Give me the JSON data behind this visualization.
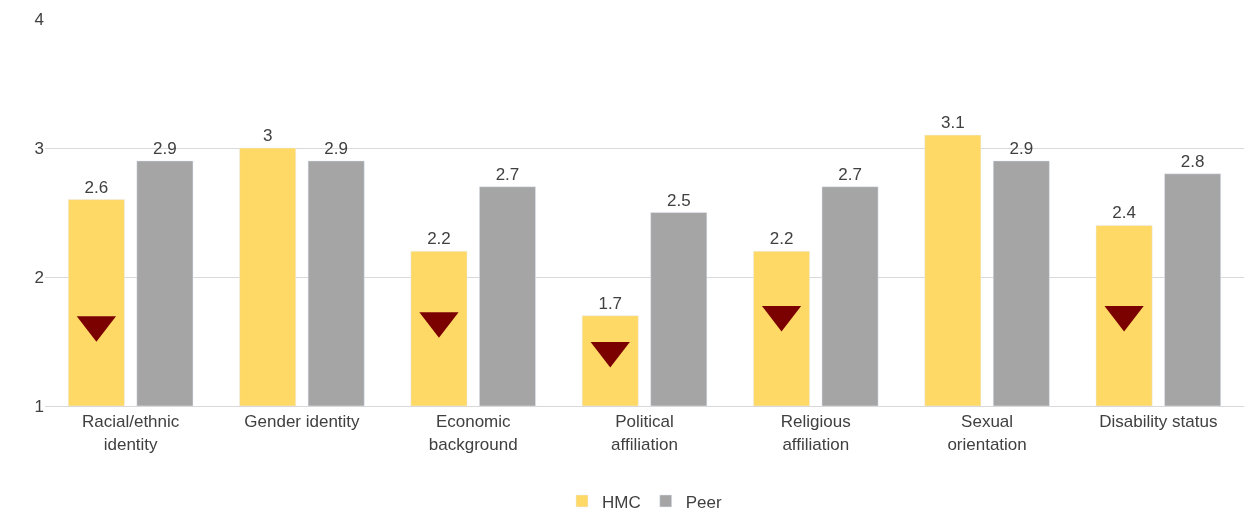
{
  "chart_data": {
    "type": "bar",
    "categories": [
      "Racial/ethnic identity",
      "Gender identity",
      "Economic background",
      "Political affiliation",
      "Religious affiliation",
      "Sexual orientation",
      "Disability status"
    ],
    "series": [
      {
        "name": "HMC",
        "color": "#ffd966",
        "values": [
          2.6,
          3,
          2.2,
          1.7,
          2.2,
          3.1,
          2.4
        ],
        "value_labels": [
          "2.6",
          "3",
          "2.2",
          "1.7",
          "2.2",
          "3.1",
          "2.4"
        ]
      },
      {
        "name": "Peer",
        "color": "#a5a5a5",
        "values": [
          2.9,
          2.9,
          2.7,
          2.5,
          2.7,
          2.9,
          2.8
        ],
        "value_labels": [
          "2.9",
          "2.9",
          "2.7",
          "2.5",
          "2.7",
          "2.9",
          "2.8"
        ]
      },
      {
        "type": "scatter",
        "color": "#7b0000",
        "marker": "triangle",
        "values": [
          1.63,
          null,
          1.66,
          1.43,
          1.71,
          null,
          1.71
        ]
      }
    ],
    "ylim": [
      1,
      4
    ],
    "yticks": [
      1,
      2,
      3,
      4
    ],
    "grid": "y",
    "legend": "bottom"
  }
}
